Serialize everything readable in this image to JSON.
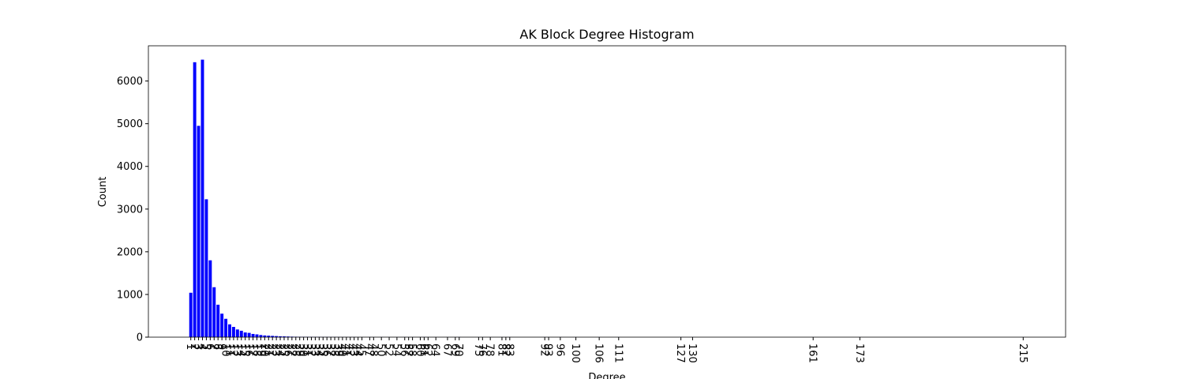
{
  "chart_data": {
    "type": "bar",
    "title": "AK Block Degree Histogram",
    "xlabel": "Degree",
    "ylabel": "Count",
    "color": "#0000ff",
    "x": [
      1,
      2,
      3,
      4,
      5,
      6,
      7,
      8,
      9,
      10,
      11,
      12,
      13,
      14,
      15,
      16,
      17,
      18,
      19,
      20,
      21,
      22,
      23,
      24,
      25,
      26,
      27,
      28,
      29,
      30,
      31,
      32,
      33,
      34,
      35,
      36,
      37,
      38,
      39,
      40,
      41,
      42,
      43,
      44,
      45,
      47,
      48,
      50,
      52,
      54,
      56,
      57,
      58,
      60,
      61,
      62,
      64,
      67,
      69,
      70,
      75,
      76,
      78,
      81,
      82,
      83,
      92,
      93,
      96,
      100,
      106,
      111,
      127,
      130,
      161,
      173,
      215
    ],
    "values": [
      1040,
      6440,
      4950,
      6500,
      3230,
      1800,
      1170,
      760,
      550,
      430,
      300,
      240,
      180,
      150,
      110,
      100,
      75,
      65,
      50,
      40,
      35,
      30,
      25,
      20,
      18,
      15,
      12,
      10,
      9,
      8,
      7,
      6,
      5,
      5,
      4,
      4,
      3,
      3,
      3,
      2,
      2,
      2,
      2,
      1,
      1,
      2,
      1,
      2,
      1,
      1,
      2,
      1,
      1,
      1,
      2,
      1,
      1,
      1,
      1,
      2,
      1,
      1,
      1,
      1,
      1,
      1,
      1,
      1,
      1,
      1,
      1,
      1,
      1,
      1,
      1,
      1,
      1
    ],
    "xticks": [
      1,
      2,
      3,
      4,
      5,
      6,
      7,
      8,
      9,
      10,
      11,
      12,
      13,
      14,
      15,
      16,
      17,
      18,
      19,
      20,
      21,
      22,
      23,
      24,
      25,
      26,
      27,
      28,
      29,
      30,
      31,
      32,
      33,
      34,
      35,
      36,
      37,
      38,
      39,
      40,
      41,
      42,
      43,
      44,
      45,
      47,
      48,
      50,
      52,
      54,
      56,
      57,
      58,
      60,
      61,
      62,
      64,
      67,
      69,
      70,
      75,
      76,
      78,
      81,
      82,
      83,
      92,
      93,
      96,
      100,
      106,
      111,
      127,
      130,
      161,
      173,
      215
    ],
    "xlim": [
      -9.9,
      225.9
    ],
    "ylim": [
      0,
      6825
    ],
    "yticks": [
      0,
      1000,
      2000,
      3000,
      4000,
      5000,
      6000
    ]
  }
}
